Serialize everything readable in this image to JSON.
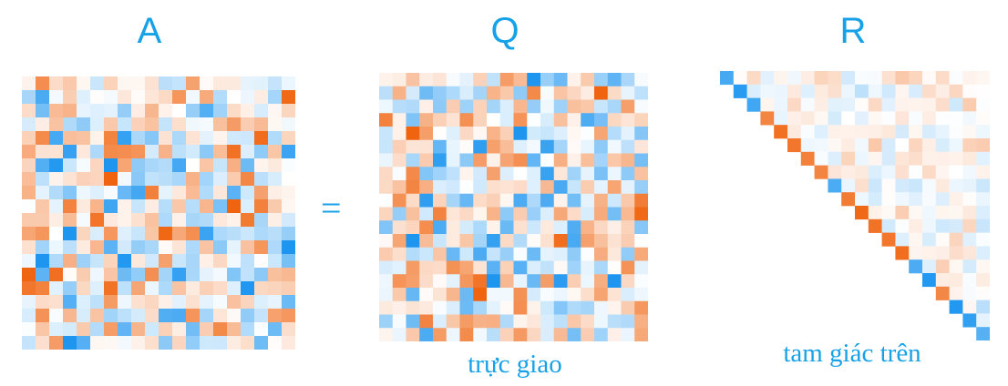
{
  "labels": {
    "a": "A",
    "q": "Q",
    "r": "R",
    "equals": "="
  },
  "captions": {
    "q": "trực giao",
    "r": "tam giác trên"
  },
  "colors": {
    "text": "#17a2e8",
    "negative_strong": "#1e96f0",
    "positive_strong": "#f0640f",
    "neutral": "#ffffff"
  },
  "matrix_size": 20
}
